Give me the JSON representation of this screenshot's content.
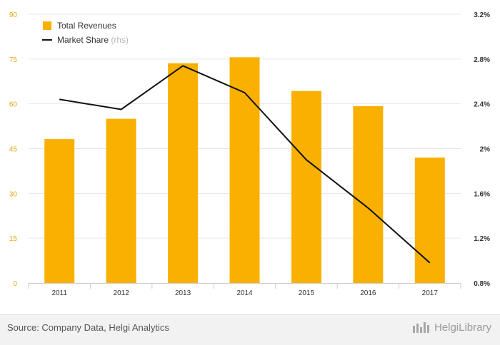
{
  "chart_data": {
    "type": "bar",
    "categories": [
      "2011",
      "2012",
      "2013",
      "2014",
      "2015",
      "2016",
      "2017"
    ],
    "series": [
      {
        "name": "Total Revenues",
        "type": "bar",
        "axis": "left",
        "color": "#f9b000",
        "values": [
          48.2,
          55.0,
          73.6,
          75.6,
          64.3,
          59.2,
          42.0
        ]
      },
      {
        "name": "Market Share",
        "name_note": "(rhs)",
        "type": "line",
        "axis": "right",
        "color": "#111111",
        "values": [
          2.44,
          2.35,
          2.74,
          2.5,
          1.9,
          1.47,
          0.98
        ]
      }
    ],
    "left_axis": {
      "min": 0,
      "max": 90,
      "ticks": [
        "0",
        "15",
        "30",
        "45",
        "60",
        "75",
        "90"
      ]
    },
    "right_axis": {
      "min": 0.8,
      "max": 3.2,
      "ticks": [
        "0.8%",
        "1.2%",
        "1.6%",
        "2%",
        "2.4%",
        "2.8%",
        "3.2%"
      ]
    },
    "grid": true,
    "legend_position": "top-left",
    "left_tick_color": "#e6a817"
  },
  "footer": {
    "source": "Source: Company Data, Helgi Analytics",
    "brand": "HelgiLibrary"
  }
}
